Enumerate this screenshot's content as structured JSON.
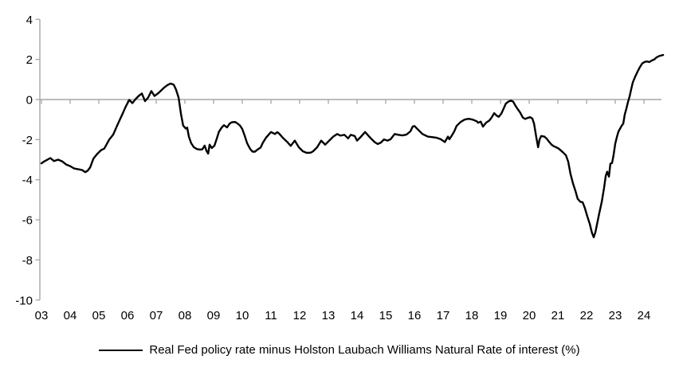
{
  "colors": {
    "line": "#000000",
    "axis": "#a6a6a6",
    "text": "#000000",
    "background": "#ffffff"
  },
  "chart_data": {
    "type": "line",
    "title": "",
    "xlabel": "",
    "ylabel": "",
    "legend_position": "bottom",
    "grid": false,
    "zero_line": true,
    "ylim": [
      -10,
      4
    ],
    "xlim": [
      2003.0,
      2024.75
    ],
    "y_ticks": [
      4,
      2,
      0,
      -2,
      -4,
      -6,
      -8,
      -10
    ],
    "x_tick_years": [
      2003,
      2004,
      2005,
      2006,
      2007,
      2008,
      2009,
      2010,
      2011,
      2012,
      2013,
      2014,
      2015,
      2016,
      2017,
      2018,
      2019,
      2020,
      2021,
      2022,
      2023,
      2024
    ],
    "x_tick_labels": [
      "03",
      "04",
      "05",
      "06",
      "07",
      "08",
      "09",
      "10",
      "11",
      "12",
      "13",
      "14",
      "15",
      "16",
      "17",
      "18",
      "19",
      "20",
      "21",
      "22",
      "23",
      "24"
    ],
    "series": [
      {
        "name": "Real Fed policy rate minus Holston Laubach Williams Natural Rate of interest (%)",
        "color": "#000000",
        "points": [
          [
            2003.0,
            -3.18
          ],
          [
            2003.08,
            -3.1
          ],
          [
            2003.17,
            -3.03
          ],
          [
            2003.31,
            -2.92
          ],
          [
            2003.44,
            -3.07
          ],
          [
            2003.58,
            -3.0
          ],
          [
            2003.72,
            -3.08
          ],
          [
            2003.86,
            -3.24
          ],
          [
            2004.0,
            -3.32
          ],
          [
            2004.14,
            -3.44
          ],
          [
            2004.28,
            -3.48
          ],
          [
            2004.42,
            -3.52
          ],
          [
            2004.53,
            -3.62
          ],
          [
            2004.61,
            -3.55
          ],
          [
            2004.7,
            -3.38
          ],
          [
            2004.81,
            -2.95
          ],
          [
            2004.94,
            -2.72
          ],
          [
            2005.08,
            -2.52
          ],
          [
            2005.19,
            -2.45
          ],
          [
            2005.36,
            -2.0
          ],
          [
            2005.5,
            -1.75
          ],
          [
            2005.64,
            -1.3
          ],
          [
            2005.72,
            -1.05
          ],
          [
            2005.83,
            -0.7
          ],
          [
            2005.94,
            -0.35
          ],
          [
            2006.06,
            -0.02
          ],
          [
            2006.17,
            -0.18
          ],
          [
            2006.28,
            0.02
          ],
          [
            2006.39,
            0.18
          ],
          [
            2006.5,
            0.3
          ],
          [
            2006.61,
            -0.08
          ],
          [
            2006.72,
            0.1
          ],
          [
            2006.83,
            0.42
          ],
          [
            2006.94,
            0.18
          ],
          [
            2007.06,
            0.3
          ],
          [
            2007.17,
            0.45
          ],
          [
            2007.28,
            0.6
          ],
          [
            2007.39,
            0.72
          ],
          [
            2007.5,
            0.8
          ],
          [
            2007.61,
            0.74
          ],
          [
            2007.69,
            0.5
          ],
          [
            2007.78,
            0.1
          ],
          [
            2007.86,
            -0.7
          ],
          [
            2007.94,
            -1.3
          ],
          [
            2008.03,
            -1.45
          ],
          [
            2008.08,
            -1.4
          ],
          [
            2008.14,
            -1.85
          ],
          [
            2008.22,
            -2.18
          ],
          [
            2008.31,
            -2.38
          ],
          [
            2008.42,
            -2.47
          ],
          [
            2008.53,
            -2.5
          ],
          [
            2008.61,
            -2.48
          ],
          [
            2008.69,
            -2.3
          ],
          [
            2008.75,
            -2.55
          ],
          [
            2008.81,
            -2.7
          ],
          [
            2008.86,
            -2.25
          ],
          [
            2008.94,
            -2.42
          ],
          [
            2009.03,
            -2.3
          ],
          [
            2009.11,
            -1.95
          ],
          [
            2009.19,
            -1.6
          ],
          [
            2009.28,
            -1.4
          ],
          [
            2009.36,
            -1.28
          ],
          [
            2009.47,
            -1.39
          ],
          [
            2009.56,
            -1.2
          ],
          [
            2009.64,
            -1.13
          ],
          [
            2009.75,
            -1.12
          ],
          [
            2009.83,
            -1.19
          ],
          [
            2009.92,
            -1.3
          ],
          [
            2010.0,
            -1.47
          ],
          [
            2010.08,
            -1.79
          ],
          [
            2010.17,
            -2.18
          ],
          [
            2010.28,
            -2.48
          ],
          [
            2010.36,
            -2.6
          ],
          [
            2010.44,
            -2.6
          ],
          [
            2010.53,
            -2.5
          ],
          [
            2010.64,
            -2.4
          ],
          [
            2010.72,
            -2.15
          ],
          [
            2010.83,
            -1.9
          ],
          [
            2010.94,
            -1.72
          ],
          [
            2011.0,
            -1.62
          ],
          [
            2011.14,
            -1.72
          ],
          [
            2011.22,
            -1.63
          ],
          [
            2011.28,
            -1.69
          ],
          [
            2011.42,
            -1.92
          ],
          [
            2011.56,
            -2.11
          ],
          [
            2011.69,
            -2.31
          ],
          [
            2011.83,
            -2.05
          ],
          [
            2011.97,
            -2.38
          ],
          [
            2012.11,
            -2.58
          ],
          [
            2012.25,
            -2.66
          ],
          [
            2012.39,
            -2.65
          ],
          [
            2012.47,
            -2.58
          ],
          [
            2012.61,
            -2.38
          ],
          [
            2012.75,
            -2.05
          ],
          [
            2012.89,
            -2.25
          ],
          [
            2013.03,
            -2.05
          ],
          [
            2013.17,
            -1.85
          ],
          [
            2013.31,
            -1.72
          ],
          [
            2013.42,
            -1.8
          ],
          [
            2013.56,
            -1.76
          ],
          [
            2013.69,
            -1.94
          ],
          [
            2013.78,
            -1.76
          ],
          [
            2013.92,
            -1.82
          ],
          [
            2014.0,
            -2.05
          ],
          [
            2014.14,
            -1.85
          ],
          [
            2014.28,
            -1.62
          ],
          [
            2014.47,
            -1.92
          ],
          [
            2014.61,
            -2.12
          ],
          [
            2014.72,
            -2.22
          ],
          [
            2014.83,
            -2.15
          ],
          [
            2014.94,
            -1.99
          ],
          [
            2015.06,
            -2.05
          ],
          [
            2015.17,
            -1.98
          ],
          [
            2015.31,
            -1.72
          ],
          [
            2015.44,
            -1.76
          ],
          [
            2015.58,
            -1.79
          ],
          [
            2015.72,
            -1.75
          ],
          [
            2015.86,
            -1.59
          ],
          [
            2015.94,
            -1.35
          ],
          [
            2016.0,
            -1.32
          ],
          [
            2016.14,
            -1.52
          ],
          [
            2016.28,
            -1.72
          ],
          [
            2016.47,
            -1.85
          ],
          [
            2016.64,
            -1.88
          ],
          [
            2016.78,
            -1.91
          ],
          [
            2016.92,
            -1.98
          ],
          [
            2017.06,
            -2.12
          ],
          [
            2017.17,
            -1.85
          ],
          [
            2017.22,
            -1.98
          ],
          [
            2017.31,
            -1.78
          ],
          [
            2017.39,
            -1.59
          ],
          [
            2017.47,
            -1.32
          ],
          [
            2017.61,
            -1.12
          ],
          [
            2017.75,
            -1.0
          ],
          [
            2017.89,
            -0.96
          ],
          [
            2018.03,
            -1.0
          ],
          [
            2018.17,
            -1.08
          ],
          [
            2018.22,
            -1.16
          ],
          [
            2018.31,
            -1.1
          ],
          [
            2018.39,
            -1.35
          ],
          [
            2018.5,
            -1.15
          ],
          [
            2018.61,
            -1.05
          ],
          [
            2018.69,
            -0.9
          ],
          [
            2018.78,
            -0.68
          ],
          [
            2018.86,
            -0.8
          ],
          [
            2018.94,
            -0.86
          ],
          [
            2019.03,
            -0.7
          ],
          [
            2019.11,
            -0.45
          ],
          [
            2019.19,
            -0.2
          ],
          [
            2019.28,
            -0.1
          ],
          [
            2019.36,
            -0.05
          ],
          [
            2019.44,
            -0.1
          ],
          [
            2019.53,
            -0.33
          ],
          [
            2019.61,
            -0.5
          ],
          [
            2019.69,
            -0.66
          ],
          [
            2019.78,
            -0.9
          ],
          [
            2019.86,
            -0.97
          ],
          [
            2019.94,
            -0.92
          ],
          [
            2020.03,
            -0.88
          ],
          [
            2020.11,
            -0.95
          ],
          [
            2020.17,
            -1.2
          ],
          [
            2020.25,
            -1.9
          ],
          [
            2020.31,
            -2.38
          ],
          [
            2020.36,
            -2.0
          ],
          [
            2020.42,
            -1.82
          ],
          [
            2020.53,
            -1.85
          ],
          [
            2020.61,
            -1.95
          ],
          [
            2020.69,
            -2.1
          ],
          [
            2020.78,
            -2.25
          ],
          [
            2020.86,
            -2.33
          ],
          [
            2020.94,
            -2.38
          ],
          [
            2021.03,
            -2.45
          ],
          [
            2021.11,
            -2.55
          ],
          [
            2021.19,
            -2.65
          ],
          [
            2021.28,
            -2.78
          ],
          [
            2021.36,
            -3.1
          ],
          [
            2021.44,
            -3.7
          ],
          [
            2021.53,
            -4.2
          ],
          [
            2021.61,
            -4.55
          ],
          [
            2021.69,
            -4.95
          ],
          [
            2021.78,
            -5.1
          ],
          [
            2021.86,
            -5.12
          ],
          [
            2021.94,
            -5.4
          ],
          [
            2022.03,
            -5.85
          ],
          [
            2022.11,
            -6.2
          ],
          [
            2022.19,
            -6.65
          ],
          [
            2022.25,
            -6.87
          ],
          [
            2022.31,
            -6.6
          ],
          [
            2022.36,
            -6.25
          ],
          [
            2022.44,
            -5.7
          ],
          [
            2022.53,
            -5.1
          ],
          [
            2022.61,
            -4.4
          ],
          [
            2022.67,
            -3.8
          ],
          [
            2022.72,
            -3.6
          ],
          [
            2022.78,
            -3.85
          ],
          [
            2022.83,
            -3.2
          ],
          [
            2022.89,
            -3.17
          ],
          [
            2022.94,
            -2.8
          ],
          [
            2023.0,
            -2.2
          ],
          [
            2023.06,
            -1.85
          ],
          [
            2023.11,
            -1.6
          ],
          [
            2023.17,
            -1.45
          ],
          [
            2023.22,
            -1.32
          ],
          [
            2023.28,
            -1.2
          ],
          [
            2023.33,
            -0.75
          ],
          [
            2023.39,
            -0.45
          ],
          [
            2023.44,
            -0.15
          ],
          [
            2023.5,
            0.15
          ],
          [
            2023.56,
            0.55
          ],
          [
            2023.61,
            0.85
          ],
          [
            2023.69,
            1.12
          ],
          [
            2023.78,
            1.4
          ],
          [
            2023.86,
            1.62
          ],
          [
            2023.94,
            1.8
          ],
          [
            2024.03,
            1.88
          ],
          [
            2024.11,
            1.9
          ],
          [
            2024.19,
            1.87
          ],
          [
            2024.28,
            1.95
          ],
          [
            2024.36,
            2.0
          ],
          [
            2024.44,
            2.1
          ],
          [
            2024.53,
            2.17
          ],
          [
            2024.61,
            2.2
          ],
          [
            2024.67,
            2.22
          ]
        ]
      }
    ]
  }
}
